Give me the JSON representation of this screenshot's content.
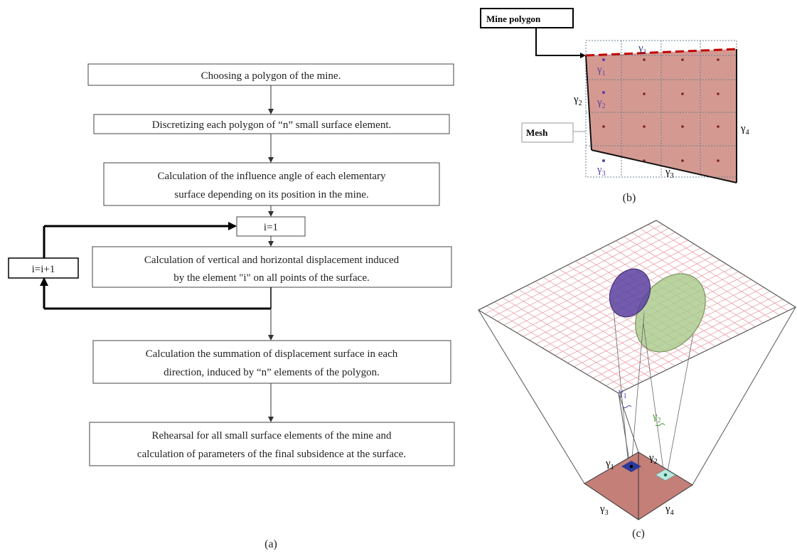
{
  "flowchart": {
    "steps": [
      "Choosing a polygon of the mine.",
      "Discretizing each polygon of “n” small surface element.",
      "Calculation of the influence angle of each elementary",
      "surface depending on its position in the mine.",
      "i=1",
      "Calculation of vertical and horizontal displacement induced",
      "by the element \"i\" on all points of the surface.",
      "Calculation the summation of displacement surface in each",
      "direction, induced by “n” elements of the polygon.",
      "Rehearsal for all small surface elements of the mine and",
      "calculation of parameters of the final subsidence at the surface."
    ],
    "loop_label": "i=i+1",
    "panel_label": "(a)"
  },
  "polygon_panel": {
    "callout_mine": "Mine polygon",
    "callout_mesh": "Mesh",
    "gamma": "γ",
    "subs": [
      "1",
      "2",
      "3",
      "4"
    ],
    "panel_label": "(b)"
  },
  "projection_panel": {
    "gamma": "γ",
    "subs": [
      "1",
      "2",
      "3",
      "4"
    ],
    "panel_label": "(c)"
  },
  "colors": {
    "mine_fill": "#d49a92",
    "mine_edge": "#c00000",
    "grid": "#e8a0a8",
    "purple_ellipse": "#5a3fa0",
    "green_ellipse": "#a8c98a",
    "gamma_blue": "#5b3fa8",
    "gamma_green": "#4a9a3a"
  }
}
